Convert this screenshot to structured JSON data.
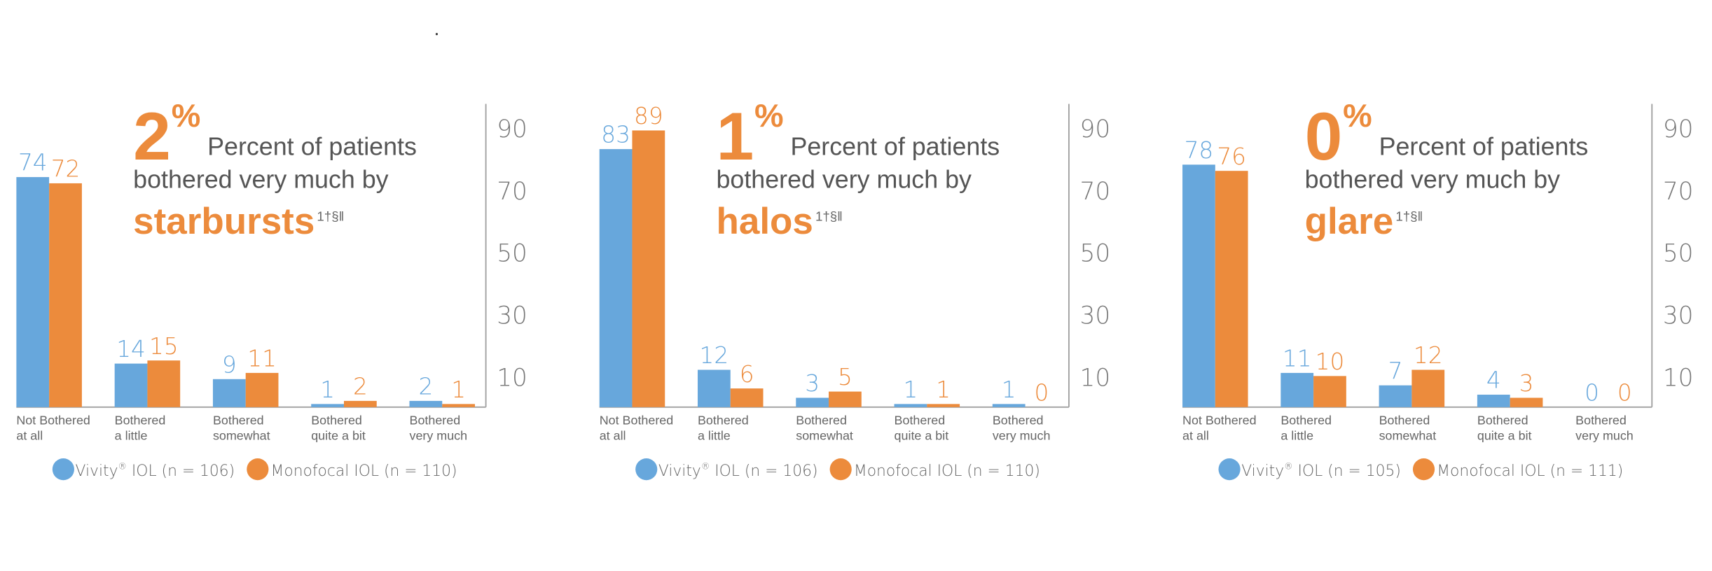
{
  "colors": {
    "vivity": "#67a7dc",
    "monofocal": "#ec8b3c",
    "text": "#555555",
    "axis": "#a0a0a0"
  },
  "chart_data": [
    {
      "type": "bar",
      "headline": {
        "percent": "2",
        "percent_sign": "%",
        "line1": "Percent of patients",
        "line2": "bothered very much by",
        "keyword": "starbursts",
        "footnote": "1†§‖"
      },
      "categories": [
        [
          "Not Bothered",
          "at all"
        ],
        [
          "Bothered",
          "a little"
        ],
        [
          "Bothered",
          "somewhat"
        ],
        [
          "Bothered",
          "quite a bit"
        ],
        [
          "Bothered",
          "very much"
        ]
      ],
      "series": [
        {
          "name": "Vivity® IOL",
          "legend_main": "Vivity",
          "legend_mark": "®",
          "legend_rest": " IOL  (n = 106)",
          "values": [
            74,
            14,
            9,
            1,
            2
          ]
        },
        {
          "name": "Monofocal IOL (n = 110)",
          "legend_main": "Monofocal IOL (n = 110)",
          "values": [
            72,
            15,
            11,
            2,
            1
          ]
        }
      ],
      "yticks": [
        "90",
        "70",
        "50",
        "30",
        "10"
      ],
      "ytick_values": [
        90,
        70,
        50,
        30,
        10
      ],
      "ylim": [
        0,
        98
      ],
      "yaxis_side": "right",
      "grid": false,
      "legend_placement": "bottom"
    },
    {
      "type": "bar",
      "headline": {
        "percent": "1",
        "percent_sign": "%",
        "line1": "Percent of patients",
        "line2": "bothered very much by",
        "keyword": "halos",
        "footnote": "1†§‖"
      },
      "categories": [
        [
          "Not Bothered",
          "at all"
        ],
        [
          "Bothered",
          "a little"
        ],
        [
          "Bothered",
          "somewhat"
        ],
        [
          "Bothered",
          "quite a bit"
        ],
        [
          "Bothered",
          "very much"
        ]
      ],
      "series": [
        {
          "name": "Vivity® IOL",
          "legend_main": "Vivity",
          "legend_mark": "®",
          "legend_rest": " IOL  (n = 106)",
          "values": [
            83,
            12,
            3,
            1,
            1
          ]
        },
        {
          "name": "Monofocal IOL (n = 110)",
          "legend_main": "Monofocal IOL (n = 110)",
          "values": [
            89,
            6,
            5,
            1,
            0
          ]
        }
      ],
      "yticks": [
        "90",
        "70",
        "50",
        "30",
        "10"
      ],
      "ytick_values": [
        90,
        70,
        50,
        30,
        10
      ],
      "ylim": [
        0,
        98
      ],
      "yaxis_side": "right",
      "grid": false,
      "legend_placement": "bottom"
    },
    {
      "type": "bar",
      "headline": {
        "percent": "0",
        "percent_sign": "%",
        "line1": "Percent of patients",
        "line2": "bothered very much by",
        "keyword": "glare",
        "footnote": "1†§‖"
      },
      "categories": [
        [
          "Not Bothered",
          "at all"
        ],
        [
          "Bothered",
          "a little"
        ],
        [
          "Bothered",
          "somewhat"
        ],
        [
          "Bothered",
          "quite a bit"
        ],
        [
          "Bothered",
          "very much"
        ]
      ],
      "series": [
        {
          "name": "Vivity® IOL",
          "legend_main": "Vivity",
          "legend_mark": "®",
          "legend_rest": " IOL  (n = 105)",
          "values": [
            78,
            11,
            7,
            4,
            0
          ]
        },
        {
          "name": "Monofocal IOL (n = 111)",
          "legend_main": "Monofocal IOL (n = 111)",
          "values": [
            76,
            10,
            12,
            3,
            0
          ]
        }
      ],
      "yticks": [
        "90",
        "70",
        "50",
        "30",
        "10"
      ],
      "ytick_values": [
        90,
        70,
        50,
        30,
        10
      ],
      "ylim": [
        0,
        98
      ],
      "yaxis_side": "right",
      "grid": false,
      "legend_placement": "bottom"
    }
  ]
}
